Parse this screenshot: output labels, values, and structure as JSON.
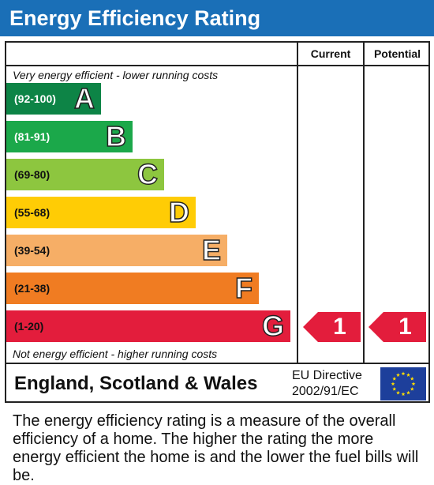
{
  "header": {
    "title": "Energy Efficiency Rating"
  },
  "columns": {
    "current": "Current",
    "potential": "Potential"
  },
  "captions": {
    "top": "Very energy efficient - lower running costs",
    "bottom": "Not energy efficient - higher running costs"
  },
  "chart_data": {
    "type": "bar",
    "title": "Energy Efficiency Rating",
    "categories": [
      "(92-100)",
      "(81-91)",
      "(69-80)",
      "(55-68)",
      "(39-54)",
      "(21-38)",
      "(1-20)"
    ],
    "bands": [
      {
        "range": "(92-100)",
        "letter": "A",
        "color": "#0d8446",
        "range_color": "#ffffff"
      },
      {
        "range": "(81-91)",
        "letter": "B",
        "color": "#1ba84a",
        "range_color": "#ffffff"
      },
      {
        "range": "(69-80)",
        "letter": "C",
        "color": "#8dc63f",
        "range_color": "#111111"
      },
      {
        "range": "(55-68)",
        "letter": "D",
        "color": "#ffcc05",
        "range_color": "#111111"
      },
      {
        "range": "(39-54)",
        "letter": "E",
        "color": "#f6ae66",
        "range_color": "#111111"
      },
      {
        "range": "(21-38)",
        "letter": "F",
        "color": "#f07c22",
        "range_color": "#111111"
      },
      {
        "range": "(1-20)",
        "letter": "G",
        "color": "#e31d3c",
        "range_color": "#111111"
      }
    ],
    "current": {
      "value": 1,
      "label": "1",
      "band": "G"
    },
    "potential": {
      "value": 1,
      "label": "1",
      "band": "G"
    }
  },
  "footer_row": {
    "region": "England, Scotland & Wales",
    "directive_line1": "EU Directive",
    "directive_line2": "2002/91/EC"
  },
  "description": "The energy efficiency rating is a measure of the overall efficiency of a home. The higher the rating the more energy efficient the home is and the lower the fuel bills will be.",
  "colors": {
    "header": "#1a6fb7",
    "arrow": "#e31d3c",
    "eu_flag": "#1d3f9b",
    "eu_star": "#ffdd00"
  }
}
